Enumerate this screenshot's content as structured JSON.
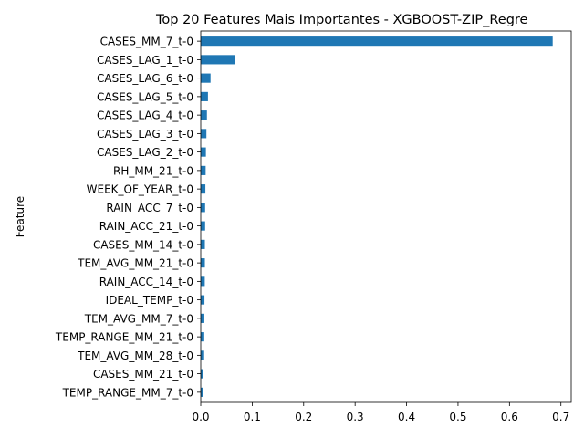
{
  "chart_data": {
    "type": "bar",
    "orientation": "horizontal",
    "title": "Top 20 Features Mais Importantes - XGBOOST-ZIP_Regre",
    "xlabel": "",
    "ylabel": "Feature",
    "xlim": [
      0,
      0.72
    ],
    "xticks": [
      0.0,
      0.1,
      0.2,
      0.3,
      0.4,
      0.5,
      0.6,
      0.7
    ],
    "xtick_labels": [
      "0.0",
      "0.1",
      "0.2",
      "0.3",
      "0.4",
      "0.5",
      "0.6",
      "0.7"
    ],
    "grid": false,
    "legend": "none",
    "bar_color": "#1f77b4",
    "categories": [
      "CASES_MM_7_t-0",
      "CASES_LAG_1_t-0",
      "CASES_LAG_6_t-0",
      "CASES_LAG_5_t-0",
      "CASES_LAG_4_t-0",
      "CASES_LAG_3_t-0",
      "CASES_LAG_2_t-0",
      "RH_MM_21_t-0",
      "WEEK_OF_YEAR_t-0",
      "RAIN_ACC_7_t-0",
      "RAIN_ACC_21_t-0",
      "CASES_MM_14_t-0",
      "TEM_AVG_MM_21_t-0",
      "RAIN_ACC_14_t-0",
      "IDEAL_TEMP_t-0",
      "TEM_AVG_MM_7_t-0",
      "TEMP_RANGE_MM_21_t-0",
      "TEM_AVG_MM_28_t-0",
      "CASES_MM_21_t-0",
      "TEMP_RANGE_MM_7_t-0"
    ],
    "values": [
      0.684,
      0.067,
      0.019,
      0.014,
      0.012,
      0.011,
      0.01,
      0.0095,
      0.009,
      0.0085,
      0.0085,
      0.008,
      0.008,
      0.0078,
      0.0072,
      0.007,
      0.0068,
      0.0066,
      0.005,
      0.0045
    ]
  }
}
